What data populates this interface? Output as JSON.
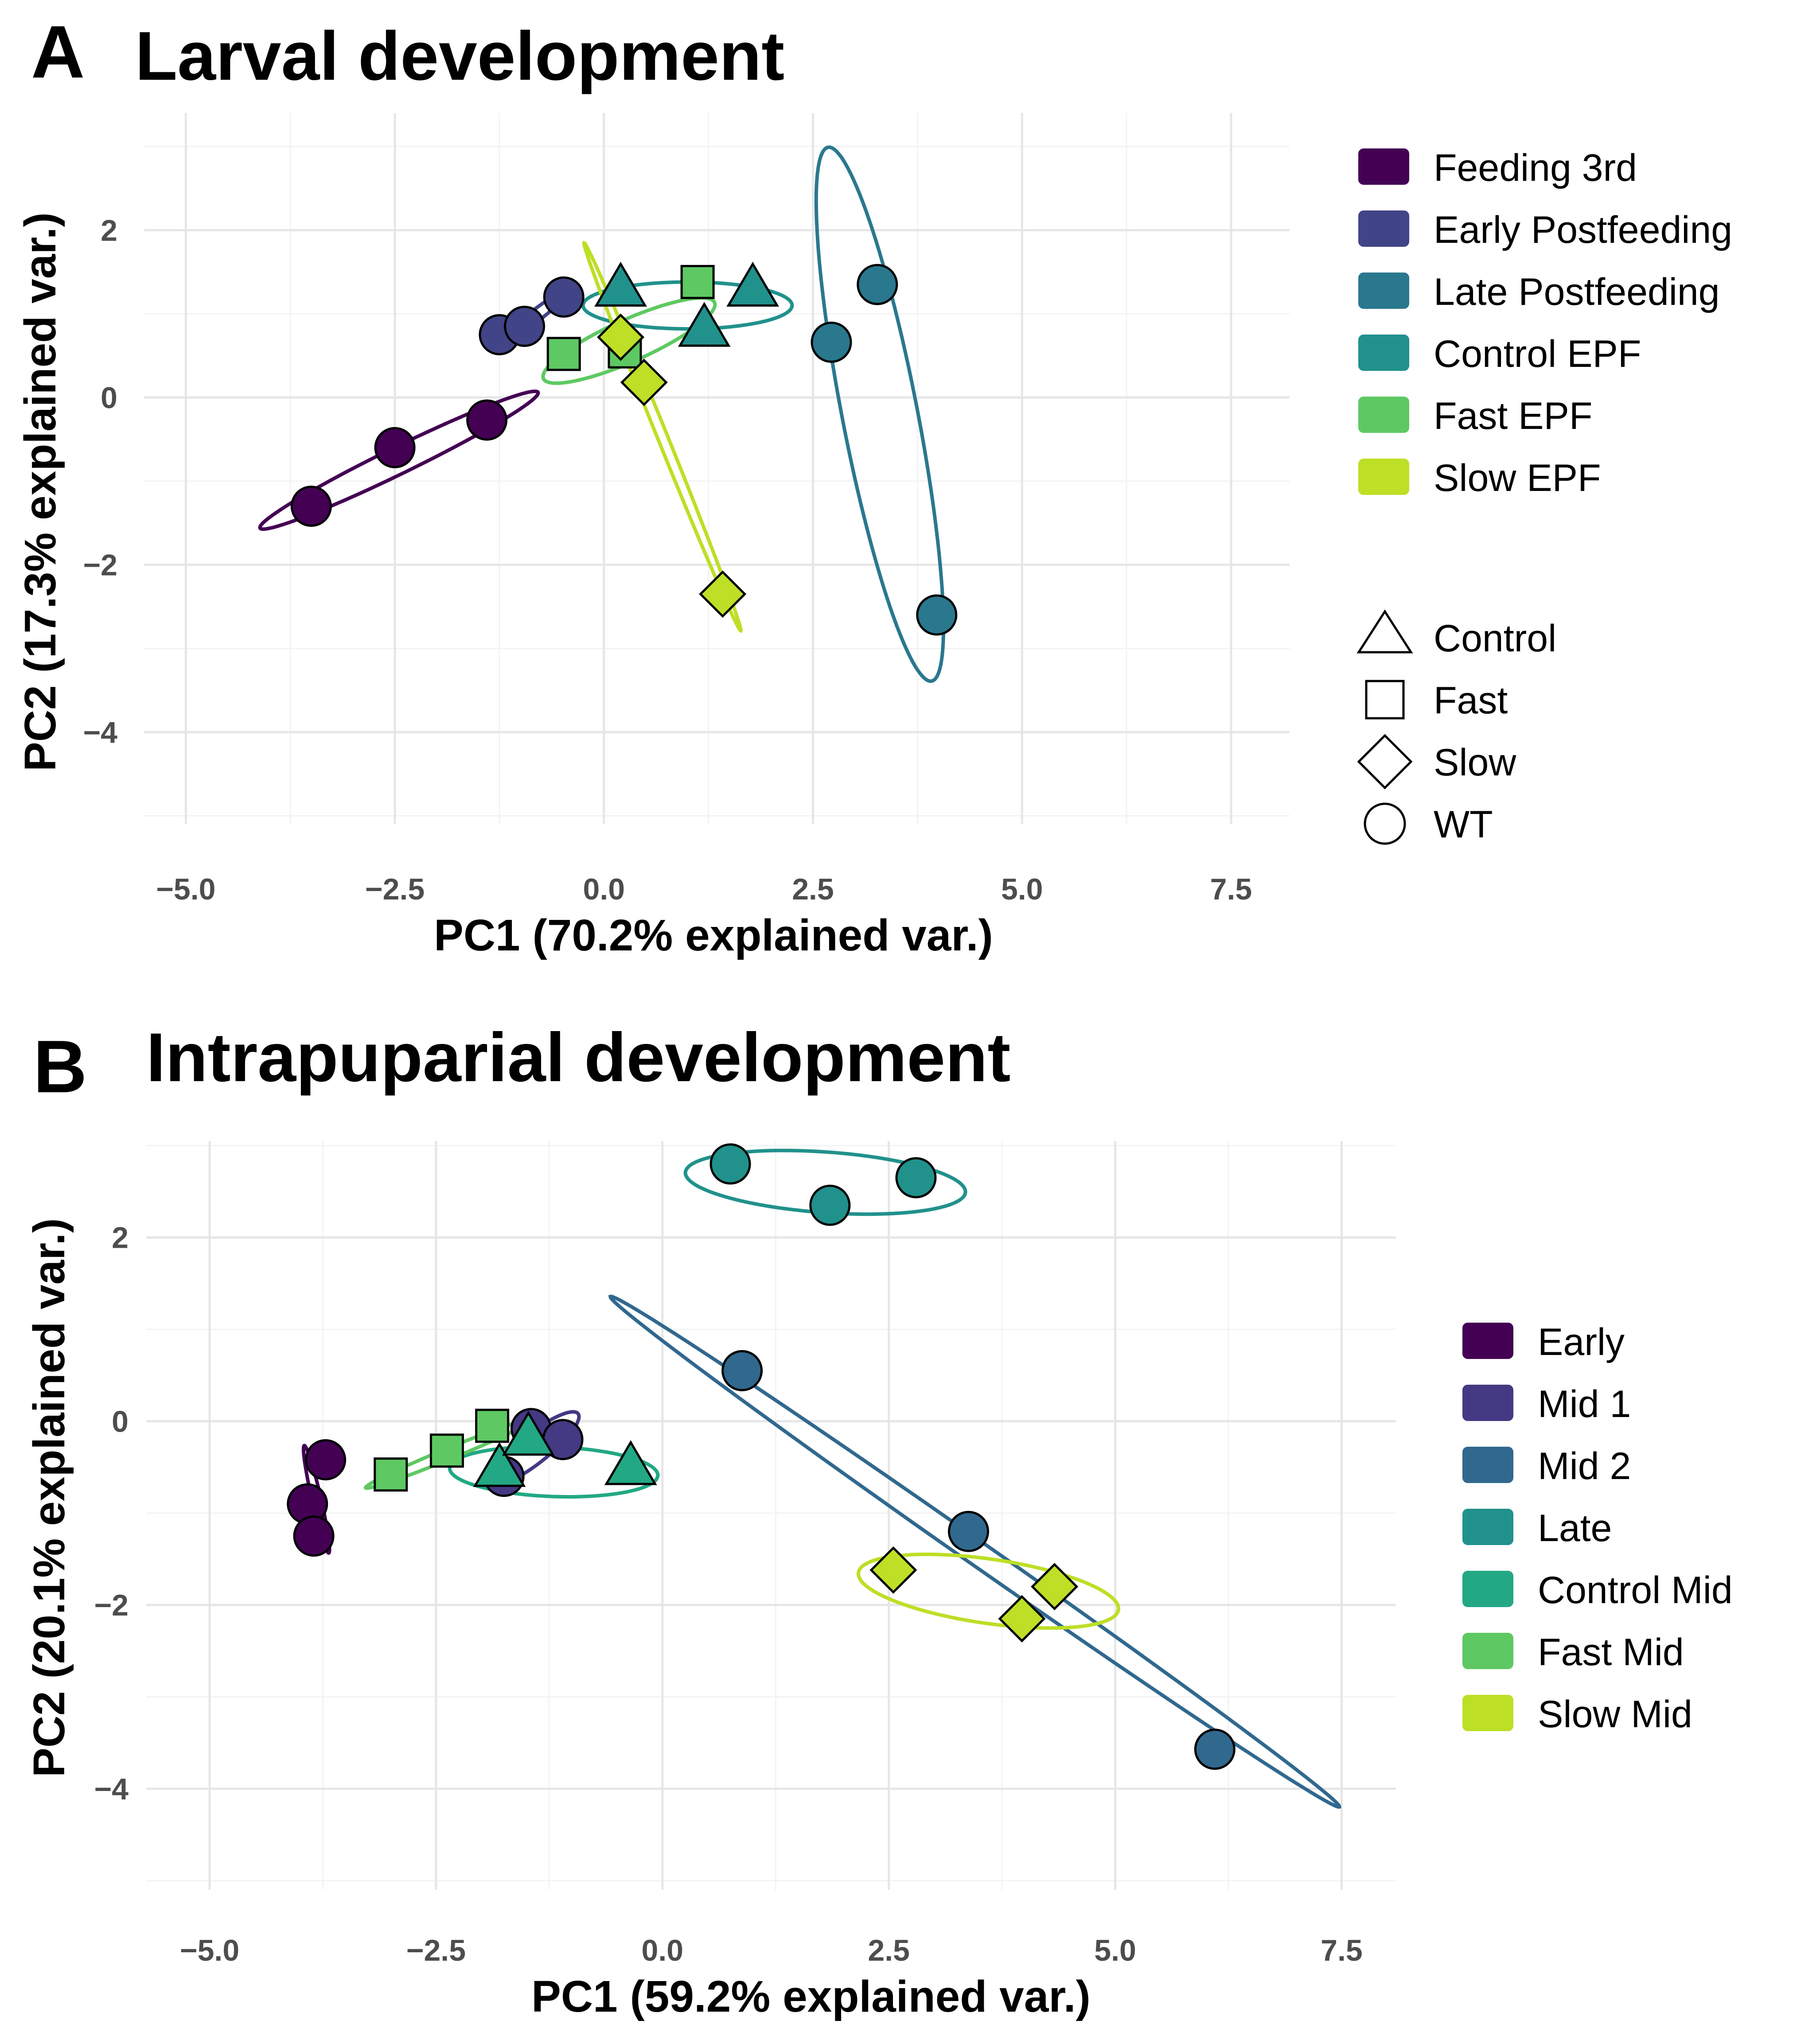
{
  "chart_data": [
    {
      "type": "scatter",
      "panel_letter": "A",
      "title": "Larval development",
      "xlabel": "PC1 (70.2% explained var.)",
      "ylabel": "PC2 (17.3% explained var.)",
      "xlim": [
        -5.5,
        8.2
      ],
      "ylim": [
        -5.1,
        3.4
      ],
      "xticks": [
        -5.0,
        -2.5,
        0.0,
        2.5,
        5.0,
        7.5
      ],
      "xtick_labels": [
        "−5.0",
        "−2.5",
        "0.0",
        "2.5",
        "5.0",
        "7.5"
      ],
      "yticks": [
        -4,
        -2,
        0,
        2
      ],
      "ytick_labels": [
        "−4",
        "−2",
        "0",
        "2"
      ],
      "groups": [
        {
          "name": "Feeding 3rd",
          "color": "#440154",
          "points": [
            {
              "x": -3.5,
              "y": -1.3,
              "shape": "WT"
            },
            {
              "x": -2.5,
              "y": -0.6,
              "shape": "WT"
            },
            {
              "x": -1.4,
              "y": -0.27,
              "shape": "WT"
            }
          ],
          "ellipse": {
            "cx": -2.45,
            "cy": -0.75,
            "a": 1.85,
            "b": 0.16,
            "angle_deg": 26
          }
        },
        {
          "name": "Early Postfeeding",
          "color": "#414487",
          "points": [
            {
              "x": -1.25,
              "y": 0.75,
              "shape": "WT"
            },
            {
              "x": -0.95,
              "y": 0.85,
              "shape": "WT"
            },
            {
              "x": -0.48,
              "y": 1.2,
              "shape": "WT"
            }
          ],
          "ellipse": {
            "cx": -0.85,
            "cy": 0.95,
            "a": 0.55,
            "b": 0.07,
            "angle_deg": 38
          }
        },
        {
          "name": "Late Postfeeding",
          "color": "#2a788e",
          "points": [
            {
              "x": 2.72,
              "y": 0.66,
              "shape": "WT"
            },
            {
              "x": 3.27,
              "y": 1.35,
              "shape": "WT"
            },
            {
              "x": 3.98,
              "y": -2.6,
              "shape": "WT"
            }
          ],
          "ellipse": {
            "cx": 3.3,
            "cy": -0.2,
            "a": 3.25,
            "b": 0.45,
            "angle_deg": -79
          }
        },
        {
          "name": "Control EPF",
          "color": "#21918c",
          "points": [
            {
              "x": 0.2,
              "y": 1.3,
              "shape": "Control"
            },
            {
              "x": 1.78,
              "y": 1.3,
              "shape": "Control"
            },
            {
              "x": 1.2,
              "y": 0.82,
              "shape": "Control"
            }
          ],
          "ellipse": {
            "cx": 1.0,
            "cy": 1.1,
            "a": 1.25,
            "b": 0.28,
            "angle_deg": 0
          }
        },
        {
          "name": "Fast EPF",
          "color": "#5ec962",
          "points": [
            {
              "x": -0.48,
              "y": 0.52,
              "shape": "Fast"
            },
            {
              "x": 1.12,
              "y": 1.38,
              "shape": "Fast"
            },
            {
              "x": 0.25,
              "y": 0.55,
              "shape": "Fast"
            }
          ],
          "ellipse": {
            "cx": 0.3,
            "cy": 0.68,
            "a": 1.12,
            "b": 0.25,
            "angle_deg": 24
          }
        },
        {
          "name": "Slow EPF",
          "color": "#bddf26",
          "points": [
            {
              "x": 0.2,
              "y": 0.72,
              "shape": "Slow"
            },
            {
              "x": 0.48,
              "y": 0.18,
              "shape": "Slow"
            },
            {
              "x": 1.42,
              "y": -2.35,
              "shape": "Slow"
            }
          ],
          "ellipse": {
            "cx": 0.7,
            "cy": -0.47,
            "a": 2.5,
            "b": 0.06,
            "angle_deg": -68
          }
        }
      ],
      "legend_color_title": "",
      "legend_shapes": [
        {
          "key": "Control",
          "label": "Control"
        },
        {
          "key": "Fast",
          "label": "Fast"
        },
        {
          "key": "Slow",
          "label": "Slow"
        },
        {
          "key": "WT",
          "label": "WT"
        }
      ],
      "legend_position": "right"
    },
    {
      "type": "scatter",
      "panel_letter": "B",
      "title": "Intrapuparial development",
      "xlabel": "PC1 (59.2% explained var.)",
      "ylabel": "PC2 (20.1% explained var.)",
      "xlim": [
        -5.7,
        8.1
      ],
      "ylim": [
        -5.1,
        3.05
      ],
      "xticks": [
        -5.0,
        -2.5,
        0.0,
        2.5,
        5.0,
        7.5
      ],
      "xtick_labels": [
        "−5.0",
        "−2.5",
        "0.0",
        "2.5",
        "5.0",
        "7.5"
      ],
      "yticks": [
        -4,
        -2,
        0,
        2
      ],
      "ytick_labels": [
        "−4",
        "−2",
        "0",
        "2"
      ],
      "groups": [
        {
          "name": "Early",
          "color": "#440154",
          "points": [
            {
              "x": -3.72,
              "y": -0.42,
              "shape": "WT"
            },
            {
              "x": -3.92,
              "y": -0.9,
              "shape": "WT"
            },
            {
              "x": -3.85,
              "y": -1.25,
              "shape": "WT"
            }
          ],
          "ellipse": {
            "cx": -3.82,
            "cy": -0.85,
            "a": 0.6,
            "b": 0.05,
            "angle_deg": -77
          }
        },
        {
          "name": "Mid 1",
          "color": "#443983",
          "points": [
            {
              "x": -1.75,
              "y": -0.6,
              "shape": "WT"
            },
            {
              "x": -1.45,
              "y": -0.08,
              "shape": "WT"
            },
            {
              "x": -1.1,
              "y": -0.2,
              "shape": "WT"
            }
          ],
          "ellipse": {
            "cx": -1.42,
            "cy": -0.3,
            "a": 0.62,
            "b": 0.16,
            "angle_deg": 38
          }
        },
        {
          "name": "Mid 2",
          "color": "#31688e",
          "points": [
            {
              "x": 0.88,
              "y": 0.55,
              "shape": "WT"
            },
            {
              "x": 3.38,
              "y": -1.2,
              "shape": "WT"
            },
            {
              "x": 6.1,
              "y": -3.57,
              "shape": "WT"
            }
          ],
          "ellipse": {
            "cx": 3.45,
            "cy": -1.42,
            "a": 4.89,
            "b": 0.13,
            "angle_deg": -34.6
          }
        },
        {
          "name": "Late",
          "color": "#21918c",
          "points": [
            {
              "x": 0.75,
              "y": 2.8,
              "shape": "WT"
            },
            {
              "x": 1.85,
              "y": 2.35,
              "shape": "WT"
            },
            {
              "x": 2.8,
              "y": 2.65,
              "shape": "WT"
            }
          ],
          "ellipse": {
            "cx": 1.8,
            "cy": 2.6,
            "a": 1.55,
            "b": 0.33,
            "angle_deg": -4
          }
        },
        {
          "name": "Control Mid",
          "color": "#22a884",
          "points": [
            {
              "x": -1.8,
              "y": -0.52,
              "shape": "Control"
            },
            {
              "x": -1.48,
              "y": -0.18,
              "shape": "Control"
            },
            {
              "x": -0.35,
              "y": -0.5,
              "shape": "Control"
            }
          ],
          "ellipse": {
            "cx": -1.2,
            "cy": -0.55,
            "a": 1.15,
            "b": 0.27,
            "angle_deg": -2
          }
        },
        {
          "name": "Fast Mid",
          "color": "#5ec962",
          "points": [
            {
              "x": -3.0,
              "y": -0.58,
              "shape": "Fast"
            },
            {
              "x": -2.38,
              "y": -0.32,
              "shape": "Fast"
            },
            {
              "x": -1.88,
              "y": -0.05,
              "shape": "Fast"
            }
          ],
          "ellipse": {
            "cx": -2.35,
            "cy": -0.35,
            "a": 1.0,
            "b": 0.06,
            "angle_deg": 22
          }
        },
        {
          "name": "Slow Mid",
          "color": "#bddf26",
          "points": [
            {
              "x": 2.55,
              "y": -1.62,
              "shape": "Slow"
            },
            {
              "x": 3.97,
              "y": -2.15,
              "shape": "Slow"
            },
            {
              "x": 4.33,
              "y": -1.8,
              "shape": "Slow"
            }
          ],
          "ellipse": {
            "cx": 3.6,
            "cy": -1.85,
            "a": 1.45,
            "b": 0.35,
            "angle_deg": -8
          }
        }
      ],
      "legend_color_title": "",
      "legend_shapes": [],
      "legend_position": "right"
    }
  ]
}
